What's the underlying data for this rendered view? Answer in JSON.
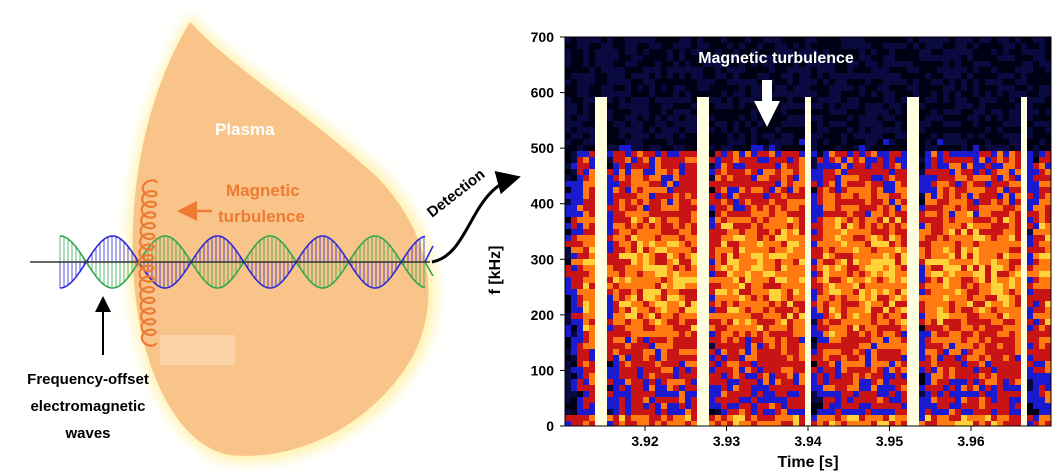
{
  "diagram": {
    "plasma_label": "Plasma",
    "turbulence_label_line1": "Magnetic",
    "turbulence_label_line2": "turbulence",
    "waves_label_line1": "Frequency-offset",
    "waves_label_line2": "electromagnetic",
    "waves_label_line3": "waves",
    "detection_label": "Detection",
    "colors": {
      "plasma": "#f8c48a",
      "plasma_glow": "#fff3b0",
      "turbulence": "#ee7b33",
      "wave_green": "#2fa84e",
      "wave_blue": "#2e2bd6"
    }
  },
  "spectrogram": {
    "annotation": "Magnetic turbulence",
    "xlabel": "Time [s]",
    "ylabel": "f [kHz]",
    "xticks": [
      "3.92",
      "3.93",
      "3.94",
      "3.95",
      "3.96"
    ],
    "yticks": [
      "0",
      "100",
      "200",
      "300",
      "400",
      "500",
      "600",
      "700"
    ],
    "colormap": [
      "#000014",
      "#1a1ad0",
      "#c81414",
      "#ff7a10",
      "#ffd23a",
      "#ffffe0"
    ]
  }
}
